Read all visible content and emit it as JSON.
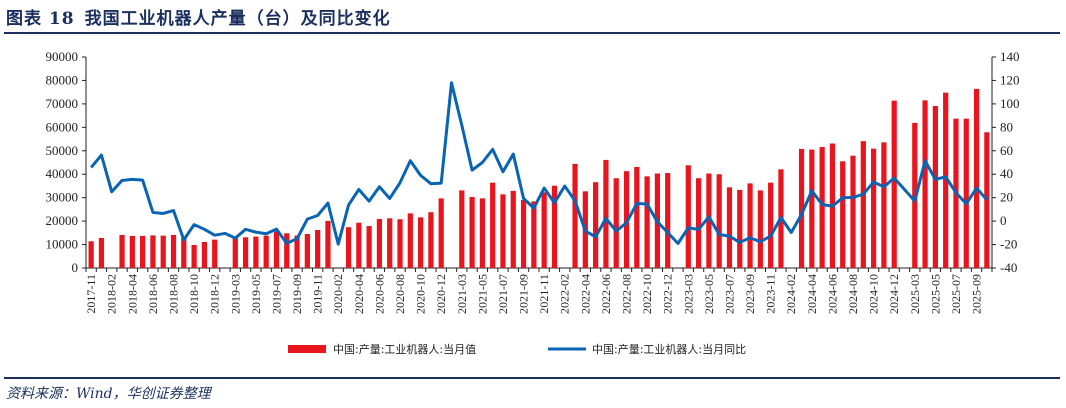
{
  "header": {
    "figure_no": "图表 18",
    "title": "我国工业机器人产量（台）及同比变化"
  },
  "source": "资料来源：Wind，华创证券整理",
  "chart_data": {
    "type": "bar+line",
    "title": "我国工业机器人产量（台）及同比变化",
    "x": [
      "2017-11",
      "2017-12",
      "2018-02",
      "2018-03",
      "2018-04",
      "2018-05",
      "2018-06",
      "2018-07",
      "2018-08",
      "2018-09",
      "2018-10",
      "2018-11",
      "2018-12",
      "2019-02",
      "2019-03",
      "2019-04",
      "2019-05",
      "2019-06",
      "2019-07",
      "2019-08",
      "2019-09",
      "2019-10",
      "2019-11",
      "2019-12",
      "2020-02",
      "2020-03",
      "2020-04",
      "2020-05",
      "2020-06",
      "2020-07",
      "2020-08",
      "2020-09",
      "2020-10",
      "2020-11",
      "2020-12",
      "2021-02",
      "2021-03",
      "2021-04",
      "2021-05",
      "2021-06",
      "2021-07",
      "2021-08",
      "2021-09",
      "2021-10",
      "2021-11",
      "2021-12",
      "2022-02",
      "2022-03",
      "2022-04",
      "2022-05",
      "2022-06",
      "2022-07",
      "2022-08",
      "2022-09",
      "2022-10",
      "2022-11",
      "2022-12",
      "2023-02",
      "2023-03",
      "2023-04",
      "2023-05",
      "2023-06",
      "2023-07",
      "2023-08",
      "2023-09",
      "2023-10",
      "2023-11",
      "2023-12",
      "2024-02",
      "2024-03",
      "2024-04",
      "2024-05",
      "2024-06",
      "2024-07",
      "2024-08",
      "2024-09",
      "2024-10",
      "2024-11",
      "2024-12",
      "2025-02",
      "2025-03",
      "2025-04",
      "2025-05",
      "2025-06",
      "2025-07",
      "2025-08",
      "2025-09",
      "2025-10"
    ],
    "tick_labels": [
      "2017-11",
      "2018-02",
      "2018-04",
      "2018-06",
      "2018-08",
      "2018-10",
      "2018-12",
      "2019-03",
      "2019-05",
      "2019-07",
      "2019-09",
      "2019-11",
      "2020-02",
      "2020-04",
      "2020-06",
      "2020-08",
      "2020-10",
      "2020-12",
      "2021-03",
      "2021-05",
      "2021-07",
      "2021-09",
      "2021-11",
      "2022-02",
      "2022-04",
      "2022-06",
      "2022-08",
      "2022-10",
      "2022-12",
      "2023-03",
      "2023-05",
      "2023-07",
      "2023-09",
      "2023-11",
      "2024-02",
      "2024-04",
      "2024-06",
      "2024-08",
      "2024-10",
      "2024-12",
      "2025-03",
      "2025-05",
      "2025-07",
      "2025-09"
    ],
    "series": [
      {
        "name": "中国:产量:工业机器人:当月值",
        "type": "bar",
        "axis": "left",
        "color": "#e8141e",
        "values": [
          11400,
          12800,
          null,
          14100,
          13700,
          13700,
          13900,
          13800,
          14100,
          12800,
          9800,
          11100,
          12100,
          null,
          12800,
          13100,
          13400,
          13800,
          15500,
          14800,
          13800,
          14500,
          16200,
          20100,
          null,
          17400,
          19300,
          17900,
          20900,
          21200,
          20800,
          23300,
          21600,
          23800,
          29700,
          null,
          33100,
          30300,
          29700,
          36400,
          31400,
          32900,
          29000,
          28400,
          32300,
          35100,
          null,
          44400,
          32700,
          36600,
          46100,
          38300,
          41300,
          43100,
          39100,
          40300,
          40500,
          null,
          43800,
          38300,
          40300,
          40000,
          34400,
          33300,
          36100,
          33100,
          36400,
          42100,
          null,
          50800,
          50500,
          51600,
          53100,
          45500,
          47900,
          54100,
          50900,
          53600,
          71400,
          null,
          61900,
          71500,
          69100,
          74800,
          63700,
          63700,
          76400,
          57900
        ]
      },
      {
        "name": "中国:产量:工业机器人:当月同比",
        "type": "line",
        "axis": "right",
        "color": "#0a64b4",
        "values": [
          45.8,
          56.3,
          25,
          34.7,
          35.6,
          35,
          7.4,
          6.5,
          9,
          -16,
          -3,
          -7,
          -12,
          -10.5,
          -14.5,
          -7,
          -9.4,
          -10.8,
          -6.8,
          -19,
          -15,
          1.7,
          4.8,
          15.4,
          -19.6,
          13.7,
          27,
          17,
          29.3,
          19.3,
          32.7,
          51.5,
          39,
          31.9,
          32.4,
          118,
          81.9,
          43.5,
          50,
          61.2,
          42.1,
          57.2,
          19.3,
          11.1,
          28.2,
          15.6,
          29.9,
          17.4,
          -8.5,
          -13.4,
          2.3,
          -8.5,
          -1.4,
          15.1,
          14.5,
          -0.6,
          -9.7,
          -19.1,
          -5.7,
          -7.1,
          3.7,
          -11.4,
          -12.8,
          -18.2,
          -14.2,
          -17.6,
          -12.8,
          3.1,
          -9.7,
          5.7,
          25.9,
          14.2,
          12.8,
          19.9,
          20.2,
          23,
          33.3,
          29.3,
          36.7,
          27,
          17.1,
          51.5,
          35.6,
          37.8,
          24.2,
          14.8,
          28.2,
          18.2
        ]
      }
    ],
    "y_left": {
      "lim": [
        0,
        90000
      ],
      "ticks": [
        "0",
        "10000",
        "20000",
        "30000",
        "40000",
        "50000",
        "60000",
        "70000",
        "80000",
        "90000"
      ]
    },
    "y_right": {
      "lim": [
        -40,
        140
      ],
      "ticks": [
        "-40",
        "-20",
        "0",
        "20",
        "40",
        "60",
        "80",
        "100",
        "120",
        "140"
      ]
    },
    "legend": {
      "placement": "bottom",
      "items": [
        "中国:产量:工业机器人:当月值",
        "中国:产量:工业机器人:当月同比"
      ]
    },
    "grid": false
  }
}
